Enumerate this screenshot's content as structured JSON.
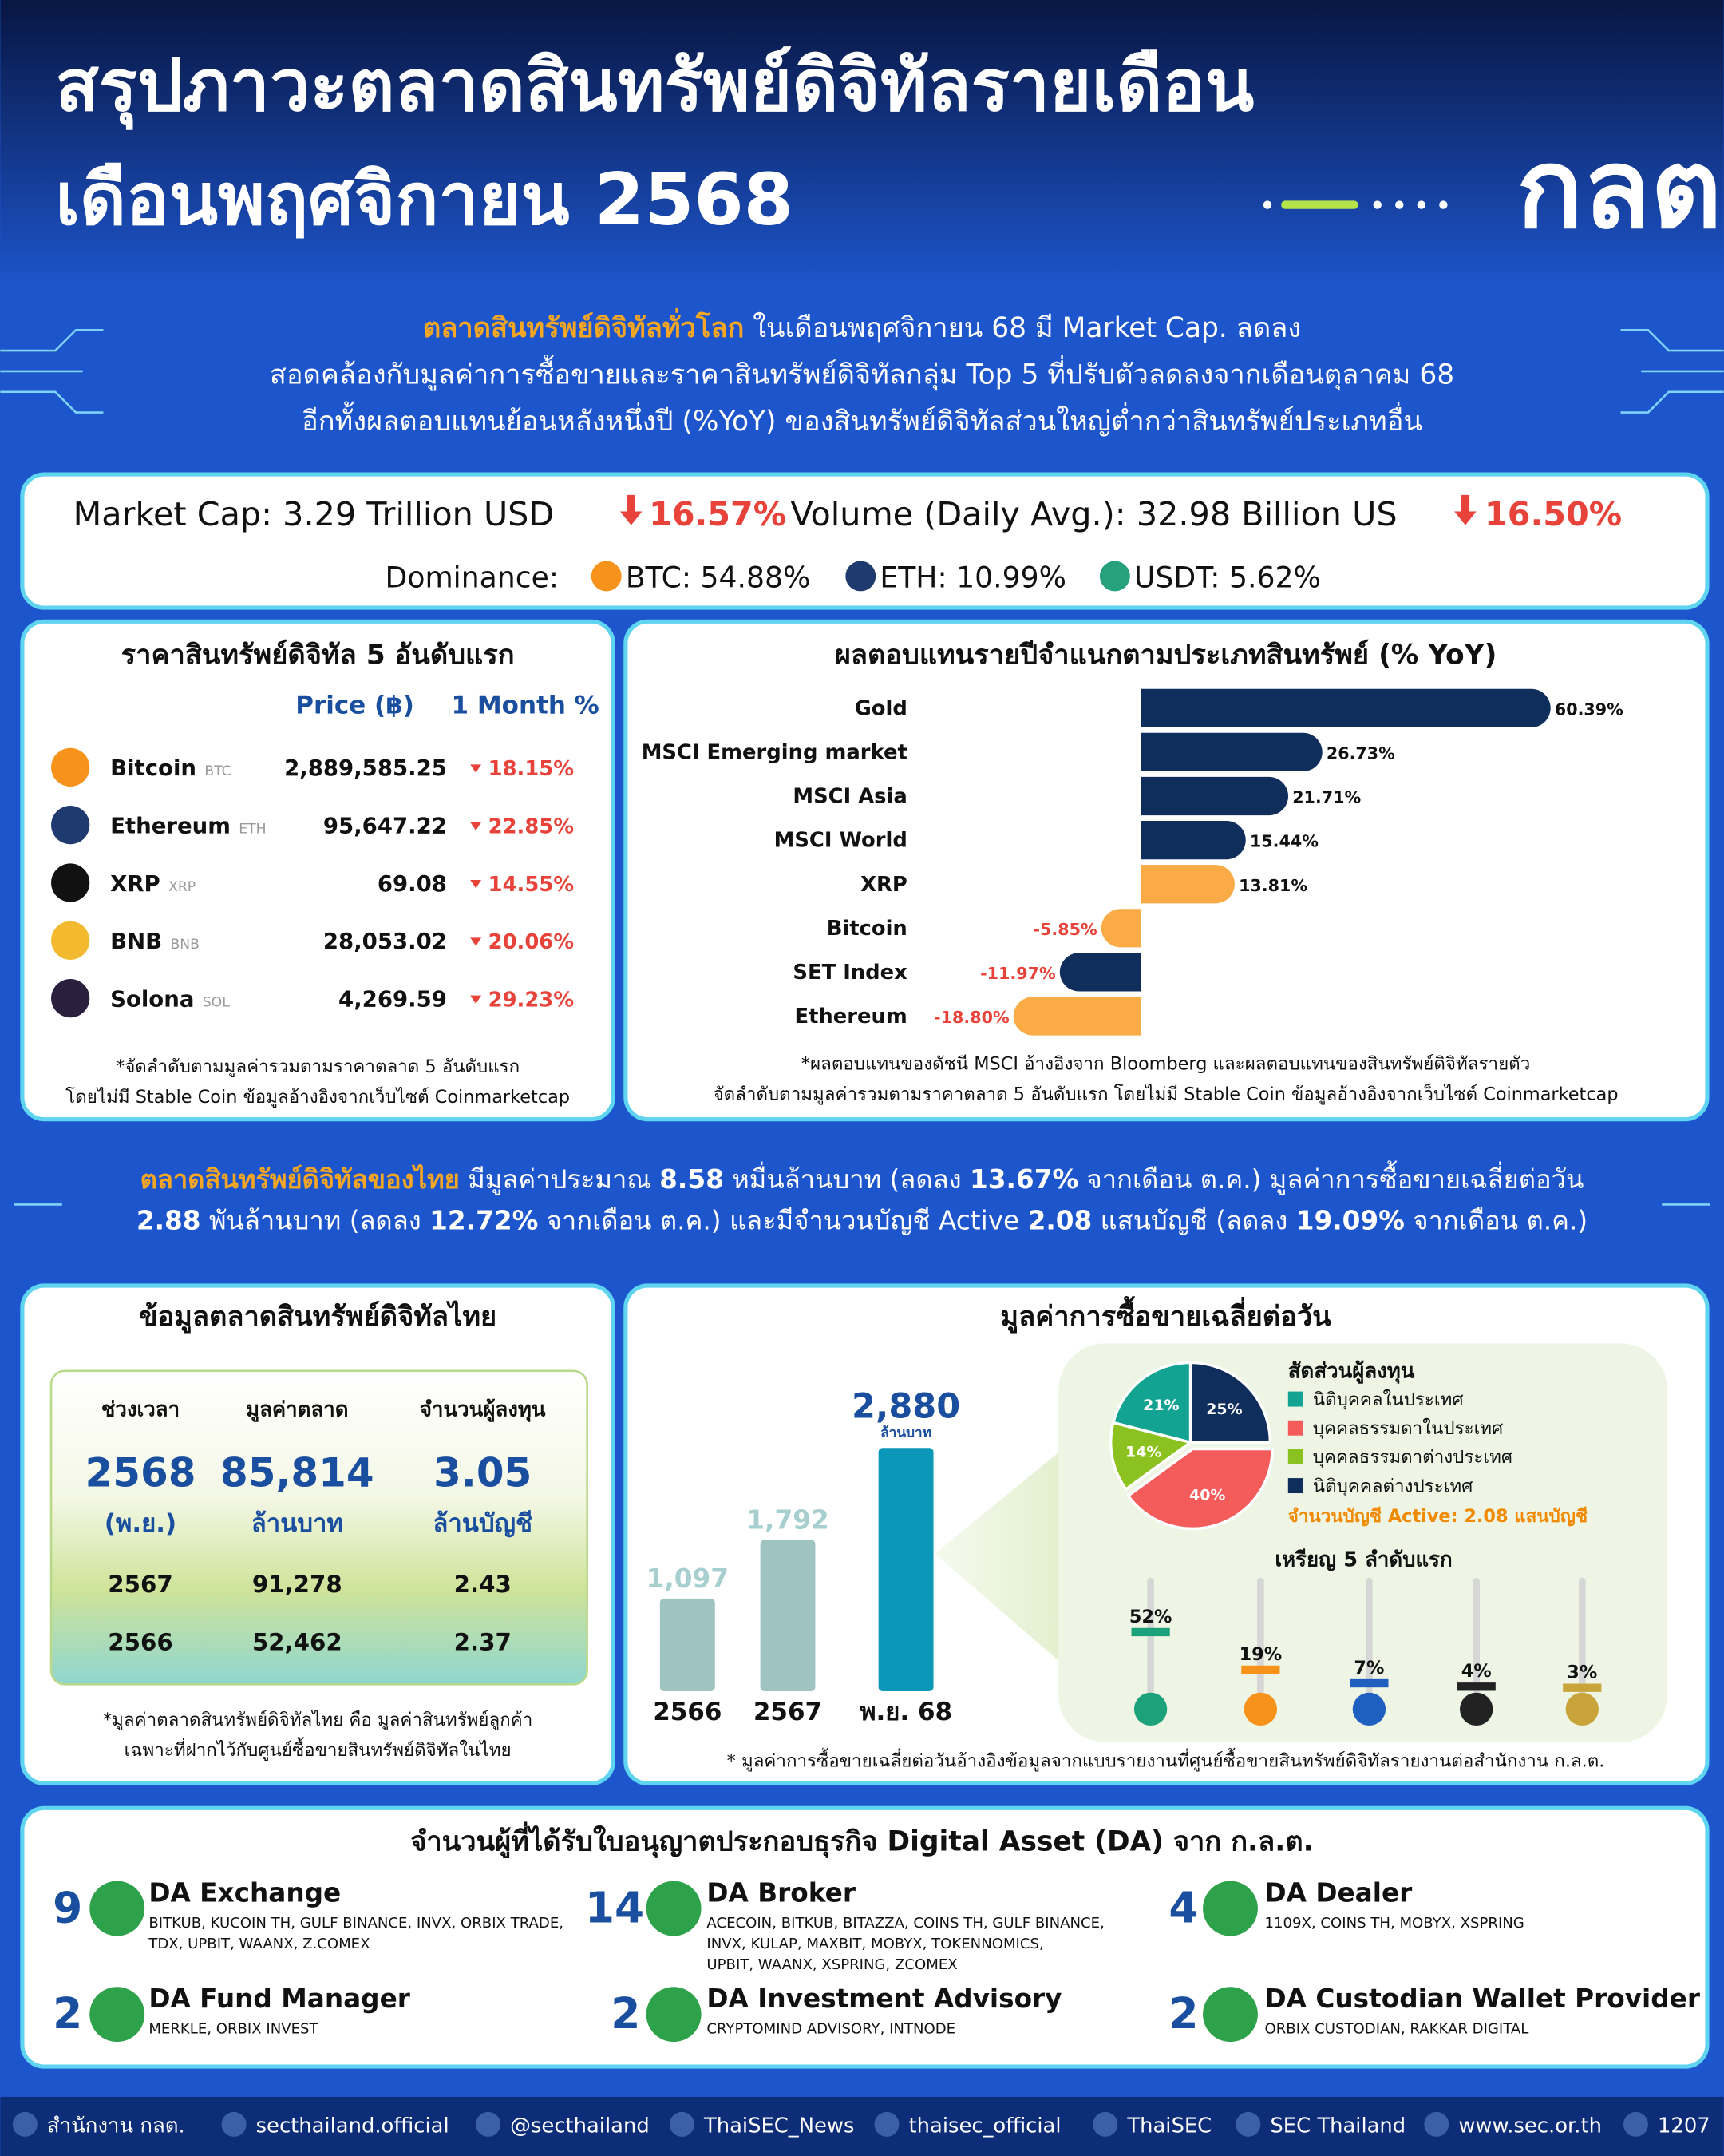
{
  "header": {
    "title_line1": "สรุปภาวะตลาดสินทรัพย์ดิจิทัลรายเดือน",
    "title_line2": "เดือนพฤศจิกายน 2568",
    "logo": "กลต"
  },
  "global_summary": {
    "highlight": "ตลาดสินทรัพย์ดิจิทัลทั่วโลก",
    "line1": " ในเดือนพฤศจิกายน 68 มี Market Cap. ลดลง",
    "line2": "สอดคล้องกับมูลค่าการซื้อขายและราคาสินทรัพย์ดิจิทัลกลุ่ม Top 5 ที่ปรับตัวลดลงจากเดือนตุลาคม 68",
    "line3": "อีกทั้งผลตอบแทนย้อนหลังหนึ่งปี (%YoY) ของสินทรัพย์ดิจิทัลส่วนใหญ่ต่ำกว่าสินทรัพย์ประเภทอื่น"
  },
  "market_stats": {
    "market_cap": "Market Cap: 3.29 Trillion USD",
    "market_cap_change": "16.57%",
    "volume": "Volume (Daily Avg.): 32.98 Billion US",
    "volume_change": "16.50%",
    "dominance_label": "Dominance:",
    "dominance": [
      "BTC: 54.88%",
      "ETH: 10.99%",
      "USDT: 5.62%"
    ]
  },
  "top5_prices": {
    "title": "ราคาสินทรัพย์ดิจิทัล 5 อันดับแรก",
    "headers": [
      "Price (฿)",
      "1 Month %"
    ],
    "rows": [
      {
        "name": "Bitcoin",
        "ticker": "BTC",
        "price": "2,889,585.25",
        "change": "18.15%"
      },
      {
        "name": "Ethereum",
        "ticker": "ETH",
        "price": "95,647.22",
        "change": "22.85%"
      },
      {
        "name": "XRP",
        "ticker": "XRP",
        "price": "69.08",
        "change": "14.55%"
      },
      {
        "name": "BNB",
        "ticker": "BNB",
        "price": "28,053.02",
        "change": "20.06%"
      },
      {
        "name": "Solona",
        "ticker": "SOL",
        "price": "4,269.59",
        "change": "29.23%"
      }
    ],
    "footnotes": [
      "*จัดลำดับตามมูลค่ารวมตามราคาตลาด 5 อันดับแรก",
      "โดยไม่มี Stable Coin ข้อมูลอ้างอิงจากเว็บไซต์ Coinmarketcap"
    ]
  },
  "yoy_chart": {
    "type": "bar",
    "orientation": "horizontal",
    "title": "ผลตอบแทนรายปีจำแนกตามประเภทสินทรัพย์ (% YoY)",
    "categories": [
      "Gold",
      "MSCI Emerging market",
      "MSCI Asia",
      "MSCI World",
      "XRP",
      "Bitcoin",
      "SET Index",
      "Ethereum"
    ],
    "values": [
      60.39,
      26.73,
      21.71,
      15.44,
      13.81,
      -5.85,
      -11.97,
      -18.8
    ],
    "value_labels": [
      "60.39%",
      "26.73%",
      "21.71%",
      "15.44%",
      "13.81%",
      "-5.85%",
      "-11.97%",
      "-18.80%"
    ],
    "colors": [
      "#0f2e5c",
      "#0f2e5c",
      "#0f2e5c",
      "#0f2e5c",
      "#fbab45",
      "#fbab45",
      "#0f2e5c",
      "#fbab45"
    ],
    "footnotes": [
      "*ผลตอบแทนของดัชนี MSCI อ้างอิงจาก Bloomberg และผลตอบแทนของสินทรัพย์ดิจิทัลรายตัว",
      "จัดลำดับตามมูลค่ารวมตามราคาตลาด 5 อันดับแรก โดยไม่มี Stable Coin ข้อมูลอ้างอิงจากเว็บไซต์ Coinmarketcap"
    ]
  },
  "thai_summary": {
    "line1": [
      "ตลาดสินทรัพย์ดิจิทัลของไทย",
      " มีมูลค่าประมาณ ",
      "8.58",
      " หมื่นล้านบาท (ลดลง ",
      "13.67%",
      " จากเดือน ต.ค.) มูลค่าการซื้อขายเฉลี่ยต่อวัน"
    ],
    "line2": [
      "2.88",
      " พันล้านบาท (ลดลง ",
      "12.72%",
      " จากเดือน ต.ค.) และมีจำนวนบัญชี Active ",
      "2.08",
      " แสนบัญชี (ลดลง ",
      "19.09%",
      " จากเดือน ต.ค.)"
    ]
  },
  "thai_market": {
    "title": "ข้อมูลตลาดสินทรัพย์ดิจิทัลไทย",
    "headers": [
      "ช่วงเวลา",
      "มูลค่าตลาด",
      "จำนวนผู้ลงทุน"
    ],
    "current": [
      "2568",
      "85,814",
      "3.05"
    ],
    "current_units": [
      "(พ.ย.)",
      "ล้านบาท",
      "ล้านบัญชี"
    ],
    "rows": [
      [
        "2567",
        "91,278",
        "2.43"
      ],
      [
        "2566",
        "52,462",
        "2.37"
      ]
    ],
    "footnotes": [
      "*มูลค่าตลาดสินทรัพย์ดิจิทัลไทย คือ มูลค่าสินทรัพย์ลูกค้า",
      "เฉพาะที่ฝากไว้กับศูนย์ซื้อขายสินทรัพย์ดิจิทัลในไทย"
    ]
  },
  "daily_volume": {
    "type": "bar",
    "title": "มูลค่าการซื้อขายเฉลี่ยต่อวัน",
    "categories": [
      "2566",
      "2567",
      "พ.ย. 68"
    ],
    "values": [
      1097,
      1792,
      2880
    ],
    "value_labels": [
      "1,097",
      "1,792",
      "2,880"
    ],
    "unit": "ล้านบาท",
    "colors": [
      "#9fc3c0",
      "#9fc3c0",
      "#0b97b7"
    ],
    "footnote": "* มูลค่าการซื้อขายเฉลี่ยต่อวันอ้างอิงข้อมูลจากแบบรายงานที่ศูนย์ซื้อขายสินทรัพย์ดิจิทัลรายงานต่อสำนักงาน ก.ล.ต."
  },
  "investor_mix": {
    "type": "pie",
    "title": "สัดส่วนผู้ลงทุน",
    "labels": [
      "นิติบุคคลในประเทศ",
      "บุคคลธรรมดาในประเทศ",
      "บุคคลธรรมดาต่างประเทศ",
      "นิติบุคคลต่างประเทศ"
    ],
    "values": [
      21,
      40,
      14,
      25
    ],
    "value_labels": [
      "21%",
      "40%",
      "14%",
      "25%"
    ],
    "colors": [
      "#12a392",
      "#f45b5b",
      "#8cc21f",
      "#0f2e5c"
    ],
    "note": "จำนวนบัญชี Active: 2.08 แสนบัญชี"
  },
  "top_coins": {
    "type": "bar",
    "title": "เหรียญ 5 ลำดับแรก",
    "values": [
      52,
      19,
      7,
      4,
      3
    ],
    "value_labels": [
      "52%",
      "19%",
      "7%",
      "4%",
      "3%"
    ],
    "colors": [
      "#1ba27a",
      "#f7931a",
      "#1f5fbf",
      "#222222",
      "#c9a43a"
    ]
  },
  "da_licenses": {
    "title": "จำนวนผู้ที่ได้รับใบอนุญาตประกอบธุรกิจ Digital Asset (DA) จาก ก.ล.ต.",
    "items": [
      {
        "count": 9,
        "name": "DA Exchange",
        "members": [
          "BITKUB, KUCOIN TH, GULF BINANCE, INVX, ORBIX TRADE,",
          "TDX, UPBIT, WAANX, Z.COMEX"
        ]
      },
      {
        "count": 14,
        "name": "DA Broker",
        "members": [
          "ACECOIN, BITKUB, BITAZZA, COINS TH, GULF BINANCE,",
          "INVX, KULAP, MAXBIT, MOBYX, TOKENNOMICS,",
          "UPBIT, WAANX, XSPRING, ZCOMEX"
        ]
      },
      {
        "count": 4,
        "name": "DA Dealer",
        "members": [
          "1109X, COINS TH, MOBYX, XSPRING"
        ]
      },
      {
        "count": 2,
        "name": "DA Fund Manager",
        "members": [
          "MERKLE, ORBIX INVEST"
        ]
      },
      {
        "count": 2,
        "name": "DA Investment Advisory",
        "members": [
          "CRYPTOMIND ADVISORY, INTNODE"
        ]
      },
      {
        "count": 2,
        "name": "DA Custodian Wallet Provider",
        "members": [
          "ORBIX CUSTODIAN, RAKKAR DIGITAL"
        ]
      }
    ]
  },
  "footer": {
    "items": [
      "สำนักงาน กลต.",
      "secthailand.official",
      "@secthailand",
      "ThaiSEC_News",
      "thaisec_official",
      "ThaiSEC",
      "SEC Thailand",
      "www.sec.or.th",
      "1207"
    ]
  }
}
